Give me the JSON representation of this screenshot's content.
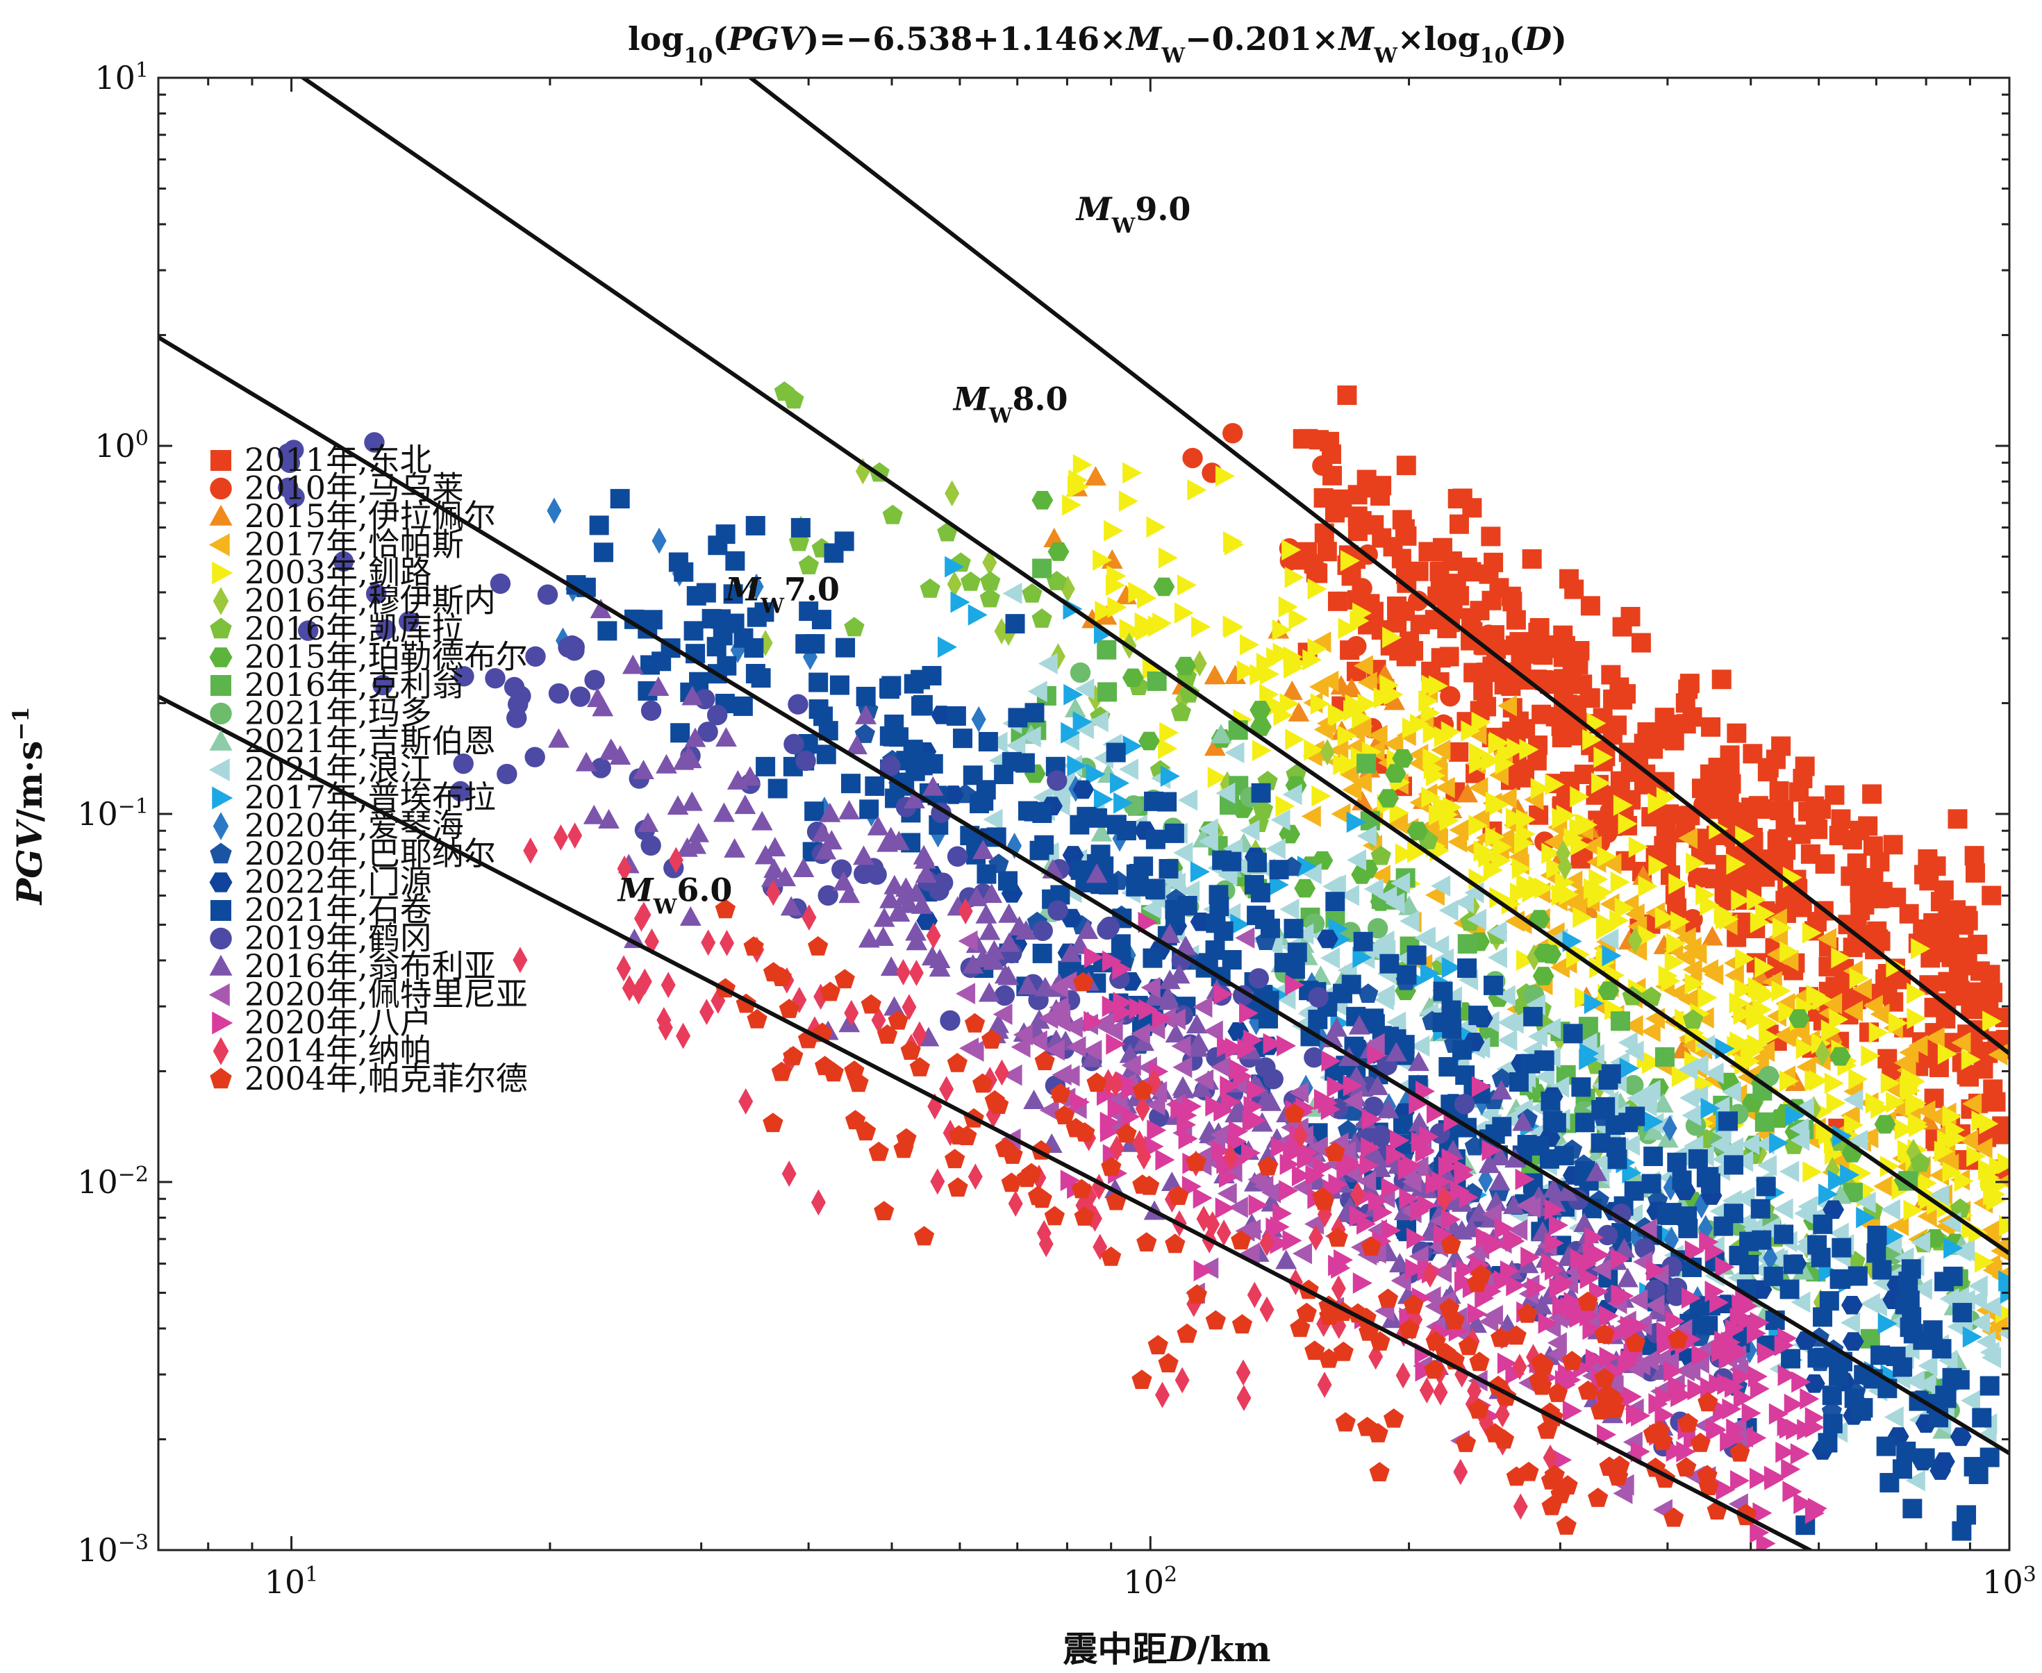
{
  "chart_data": {
    "type": "scatter",
    "title": {
      "prefix": "log",
      "sub": "10",
      "lparen": "(",
      "pgv": "PGV",
      "middle": ")=−6.538+1.146×",
      "mw": "M",
      "mwsub": "W",
      "middle2": "−0.201×",
      "times": "×log",
      "d": "D",
      "rparen": ")"
    },
    "xlabel": {
      "prefix": "震中距",
      "var": "D",
      "unit": "/km"
    },
    "ylabel": {
      "var": "PGV",
      "unit": "/m·s",
      "exp": "−1"
    },
    "xscale": "log",
    "yscale": "log",
    "xlim": [
      7,
      1000
    ],
    "ylim": [
      0.001,
      10
    ],
    "xticks": [
      {
        "value": 10,
        "base": "10",
        "exp": "1"
      },
      {
        "value": 100,
        "base": "10",
        "exp": "2"
      },
      {
        "value": 1000,
        "base": "10",
        "exp": "3"
      }
    ],
    "yticks": [
      {
        "value": 10,
        "base": "10",
        "exp": "1"
      },
      {
        "value": 1,
        "base": "10",
        "exp": "0"
      },
      {
        "value": 0.1,
        "base": "10",
        "exp": "−1"
      },
      {
        "value": 0.01,
        "base": "10",
        "exp": "−2"
      },
      {
        "value": 0.001,
        "base": "10",
        "exp": "−3"
      }
    ],
    "grid": false,
    "legend_position": "left",
    "model": {
      "a": -6.538,
      "b": 1.146,
      "c": -0.201
    },
    "model_lines": [
      {
        "mw": 6.0,
        "label_m": "M",
        "label_sub": "W",
        "label_val": "6.0",
        "label_at": [
          24,
          0.058
        ]
      },
      {
        "mw": 7.0,
        "label_m": "M",
        "label_sub": "W",
        "label_val": "7.0",
        "label_at": [
          32,
          0.38
        ]
      },
      {
        "mw": 8.0,
        "label_m": "M",
        "label_sub": "W",
        "label_val": "8.0",
        "label_at": [
          59,
          1.25
        ]
      },
      {
        "mw": 9.0,
        "label_m": "M",
        "label_sub": "W",
        "label_val": "9.0",
        "label_at": [
          82,
          4.1
        ]
      }
    ],
    "series": [
      {
        "name": "2011年,东北",
        "color": "#e8401c",
        "marker": "square",
        "dmin": 150,
        "dmax": 1000,
        "mw": 9.0,
        "spread": 0.32,
        "n": 520
      },
      {
        "name": "2010年,马乌莱",
        "color": "#e8401c",
        "marker": "circle",
        "dmin": 110,
        "dmax": 450,
        "mw": 8.8,
        "spread": 0.25,
        "n": 25
      },
      {
        "name": "2015年,伊拉佩尔",
        "color": "#f08a1c",
        "marker": "triangle-up",
        "dmin": 70,
        "dmax": 900,
        "mw": 8.3,
        "spread": 0.25,
        "n": 45
      },
      {
        "name": "2017年,恰帕斯",
        "color": "#f5b41c",
        "marker": "triangle-left",
        "dmin": 150,
        "dmax": 1000,
        "mw": 8.2,
        "spread": 0.28,
        "n": 260
      },
      {
        "name": "2003年,釧路",
        "color": "#f4ee14",
        "marker": "triangle-right",
        "dmin": 80,
        "dmax": 1000,
        "mw": 8.3,
        "spread": 0.3,
        "n": 360
      },
      {
        "name": "2016年,穆伊斯内",
        "color": "#9cc83c",
        "marker": "diamond",
        "dmin": 35,
        "dmax": 800,
        "mw": 7.8,
        "spread": 0.3,
        "n": 40
      },
      {
        "name": "2016年,凯库拉",
        "color": "#7cc03c",
        "marker": "pentagon",
        "dmin": 35,
        "dmax": 900,
        "mw": 7.8,
        "spread": 0.3,
        "n": 60
      },
      {
        "name": "2015年,珀勒德布尔",
        "color": "#5cb43c",
        "marker": "hexagon",
        "dmin": 70,
        "dmax": 900,
        "mw": 7.8,
        "spread": 0.3,
        "n": 60
      },
      {
        "name": "2016年,克利翁",
        "color": "#5cb44c",
        "marker": "square",
        "dmin": 60,
        "dmax": 900,
        "mw": 7.6,
        "spread": 0.3,
        "n": 50
      },
      {
        "name": "2021年,玛多",
        "color": "#6cbc6c",
        "marker": "circle",
        "dmin": 60,
        "dmax": 900,
        "mw": 7.4,
        "spread": 0.3,
        "n": 40
      },
      {
        "name": "2021年,吉斯伯恩",
        "color": "#8ccca8",
        "marker": "triangle-up",
        "dmin": 60,
        "dmax": 900,
        "mw": 7.3,
        "spread": 0.3,
        "n": 60
      },
      {
        "name": "2021年,浪江",
        "color": "#a8d8dc",
        "marker": "triangle-left",
        "dmin": 60,
        "dmax": 1000,
        "mw": 7.4,
        "spread": 0.3,
        "n": 320
      },
      {
        "name": "2017年,普埃布拉",
        "color": "#1ca8e4",
        "marker": "triangle-right",
        "dmin": 55,
        "dmax": 1000,
        "mw": 7.5,
        "spread": 0.3,
        "n": 70
      },
      {
        "name": "2020年,爱琴海",
        "color": "#2c78c4",
        "marker": "diamond",
        "dmin": 18,
        "dmax": 700,
        "mw": 7.0,
        "spread": 0.3,
        "n": 40
      },
      {
        "name": "2020年,巴耶纳尔",
        "color": "#1c54a4",
        "marker": "pentagon",
        "dmin": 40,
        "dmax": 700,
        "mw": 7.0,
        "spread": 0.3,
        "n": 60
      },
      {
        "name": "2022年,门源",
        "color": "#10449c",
        "marker": "hexagon",
        "dmin": 40,
        "dmax": 900,
        "mw": 7.0,
        "spread": 0.3,
        "n": 80
      },
      {
        "name": "2021年,石卷",
        "color": "#0e4a9c",
        "marker": "square",
        "dmin": 20,
        "dmax": 950,
        "mw": 7.1,
        "spread": 0.3,
        "n": 430
      },
      {
        "name": "2019年,鹤冈",
        "color": "#4c4aa4",
        "marker": "circle",
        "dmin": 9,
        "dmax": 500,
        "mw": 6.7,
        "spread": 0.3,
        "n": 150
      },
      {
        "name": "2016年,翁布利亚",
        "color": "#7c54ac",
        "marker": "triangle-up",
        "dmin": 20,
        "dmax": 400,
        "mw": 6.6,
        "spread": 0.3,
        "n": 300
      },
      {
        "name": "2020年,佩特里尼亚",
        "color": "#a858b0",
        "marker": "triangle-left",
        "dmin": 60,
        "dmax": 500,
        "mw": 6.4,
        "spread": 0.3,
        "n": 200
      },
      {
        "name": "2020年,八户",
        "color": "#d83c9c",
        "marker": "triangle-right",
        "dmin": 80,
        "dmax": 600,
        "mw": 6.5,
        "spread": 0.3,
        "n": 330
      },
      {
        "name": "2014年,纳帕",
        "color": "#e83c5c",
        "marker": "diamond",
        "dmin": 18,
        "dmax": 300,
        "mw": 6.0,
        "spread": 0.3,
        "n": 120
      },
      {
        "name": "2004年,帕克菲尔德",
        "color": "#e43a1c",
        "marker": "pentagon",
        "dmin": 30,
        "dmax": 500,
        "mw": 6.0,
        "spread": 0.3,
        "n": 180
      }
    ]
  }
}
